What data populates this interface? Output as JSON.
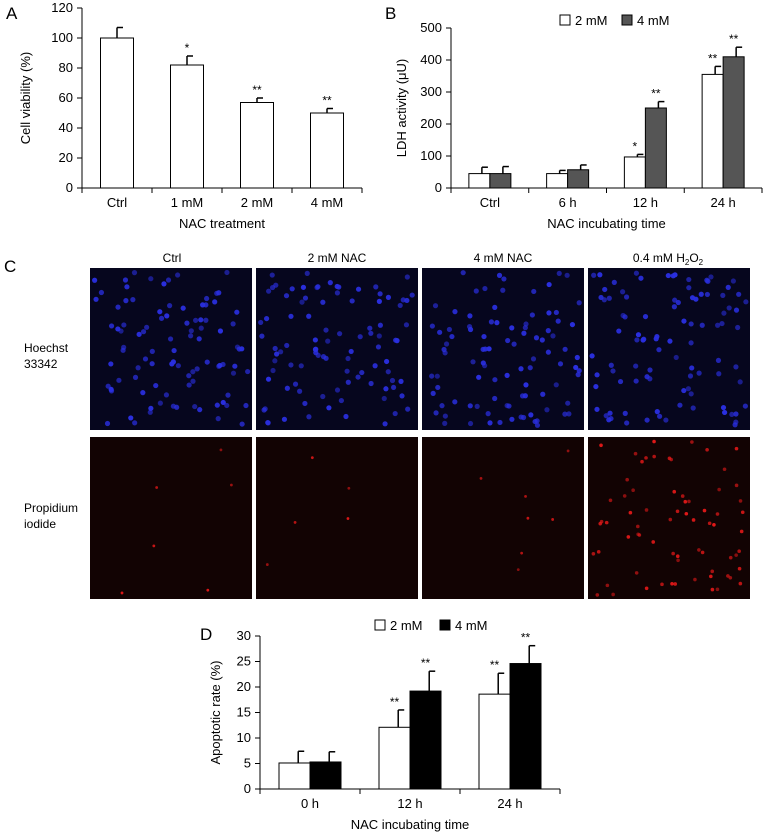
{
  "panels": {
    "A": {
      "letter": "A"
    },
    "B": {
      "letter": "B"
    },
    "C": {
      "letter": "C"
    },
    "D": {
      "letter": "D"
    }
  },
  "microscopy": {
    "columns": [
      "Ctrl",
      "2 mM NAC",
      "4 mM NAC",
      "0.4 mM H2O2"
    ],
    "h2o2": {
      "prefix": "0.4 mM H",
      "sub1": "2",
      "mid": "O",
      "sub2": "2"
    },
    "rows": [
      {
        "label_line1": "Hoechst",
        "label_line2": "33342",
        "stain_color": "#2a2fe0",
        "background": "#06061e"
      },
      {
        "label_line1": "Propidium",
        "label_line2": "iodide",
        "stain_color": "#e01818",
        "background": "#120303"
      }
    ]
  },
  "chart_data": [
    {
      "panel": "A",
      "type": "bar",
      "xlabel": "NAC treatment",
      "ylabel": "Cell viability (%)",
      "ylim": [
        0,
        120
      ],
      "yticks": [
        0,
        20,
        40,
        60,
        80,
        100,
        120
      ],
      "categories": [
        "Ctrl",
        "1 mM",
        "2 mM",
        "4 mM"
      ],
      "series": [
        {
          "values": [
            100,
            82,
            57,
            50
          ],
          "errors": [
            7,
            6,
            3,
            3
          ],
          "color": "#ffffff",
          "annotations": [
            "",
            "*",
            "**",
            "**"
          ]
        }
      ]
    },
    {
      "panel": "B",
      "type": "bar",
      "xlabel": "NAC incubating time",
      "ylabel": "LDH activity (μU)",
      "ylim": [
        0,
        500
      ],
      "yticks": [
        0,
        100,
        200,
        300,
        400,
        500
      ],
      "categories": [
        "Ctrl",
        "6 h",
        "12 h",
        "24 h"
      ],
      "legend_position": "top",
      "series": [
        {
          "name": "2 mM",
          "values": [
            45,
            45,
            97,
            355
          ],
          "errors": [
            20,
            10,
            8,
            25
          ],
          "color": "#ffffff",
          "annotations": [
            "",
            "",
            "*",
            "**"
          ]
        },
        {
          "name": "4 mM",
          "values": [
            45,
            57,
            250,
            410
          ],
          "errors": [
            22,
            15,
            20,
            30
          ],
          "color": "#555555",
          "annotations": [
            "",
            "",
            "**",
            "**"
          ]
        }
      ]
    },
    {
      "panel": "D",
      "type": "bar",
      "xlabel": "NAC incubating time",
      "ylabel": "Apoptotic rate (%)",
      "ylim": [
        0,
        30
      ],
      "yticks": [
        0,
        5,
        10,
        15,
        20,
        25,
        30
      ],
      "categories": [
        "0 h",
        "12 h",
        "24 h"
      ],
      "legend_position": "top",
      "series": [
        {
          "name": "2 mM",
          "values": [
            5.1,
            12.1,
            18.6
          ],
          "errors": [
            2.3,
            3.4,
            4.1
          ],
          "color": "#ffffff",
          "annotations": [
            "",
            "**",
            "**"
          ]
        },
        {
          "name": "4 mM",
          "values": [
            5.3,
            19.2,
            24.6
          ],
          "errors": [
            2.0,
            3.9,
            3.5
          ],
          "color": "#000000",
          "annotations": [
            "",
            "**",
            "**"
          ]
        }
      ]
    }
  ]
}
